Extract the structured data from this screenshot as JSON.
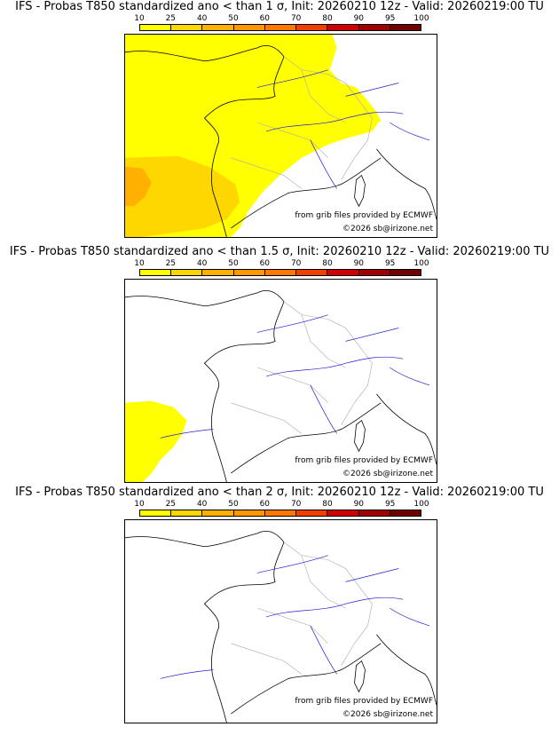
{
  "panels": [
    {
      "title": "IFS - Probas T850  standardized ano < than 1 σ, Init: 20260210 12z - Valid: 20260219:00 TU",
      "threshold_sigma": 1,
      "credit_source": "from grib files provided by ECMWF",
      "credit_copyright": "©2026 sb@irizone.net"
    },
    {
      "title": "IFS - Probas T850  standardized ano < than 1.5 σ, Init: 20260210 12z - Valid: 20260219:00 TU",
      "threshold_sigma": 1.5,
      "credit_source": "from grib files provided by ECMWF",
      "credit_copyright": "©2026 sb@irizone.net"
    },
    {
      "title": "IFS - Probas T850  standardized ano < than 2 σ, Init: 20260210 12z - Valid: 20260219:00 TU",
      "threshold_sigma": 2,
      "credit_source": "from grib files provided by ECMWF",
      "credit_copyright": "©2026 sb@irizone.net"
    }
  ],
  "legend": {
    "ticks": [
      "10",
      "25",
      "40",
      "50",
      "60",
      "70",
      "80",
      "90",
      "95",
      "100"
    ],
    "colors": [
      "#ffff00",
      "#ffd700",
      "#ffb000",
      "#ff9800",
      "#ff7800",
      "#f04000",
      "#d00000",
      "#a00000",
      "#700000"
    ]
  },
  "colors": {
    "rivers": "#2020d0",
    "coast": "#000000",
    "borders": "#aaaaaa",
    "prob_low": "#ffff00",
    "prob_mid": "#ffd700",
    "prob_high": "#ffb000"
  }
}
